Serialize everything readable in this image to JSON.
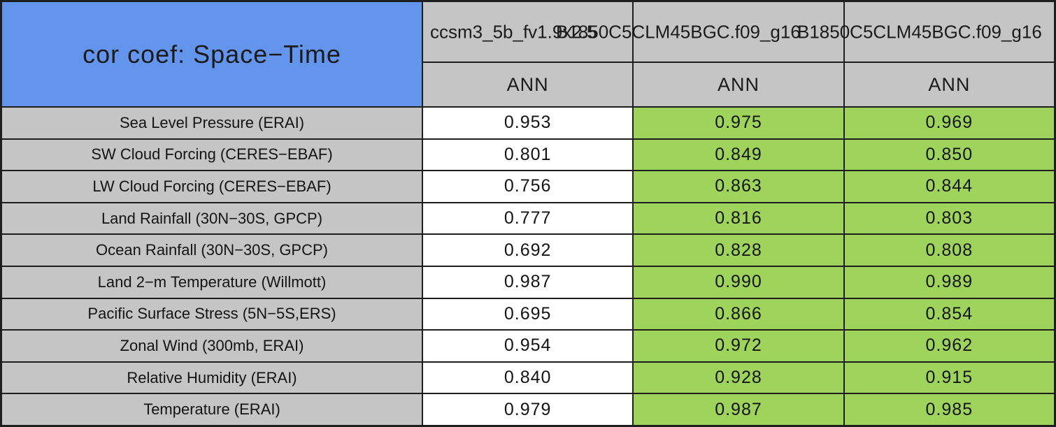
{
  "chart_data": {
    "type": "table",
    "title": "cor coef: Space−Time",
    "columns": [
      {
        "case_name": "ccsm3_5b_fv1.9x2.5",
        "season": "ANN"
      },
      {
        "case_name": "B1850C5CLM45BGC.f09_g16",
        "season": "ANN"
      },
      {
        "case_name": "B1850C5CLM45BGC.f09_g16",
        "season": "ANN"
      }
    ],
    "row_labels": [
      "Sea Level Pressure (ERAI)",
      "SW Cloud Forcing (CERES−EBAF)",
      "LW Cloud Forcing (CERES−EBAF)",
      "Land Rainfall (30N−30S, GPCP)",
      "Ocean Rainfall (30N−30S, GPCP)",
      "Land 2−m Temperature (Willmott)",
      "Pacific Surface Stress (5N−5S,ERS)",
      "Zonal Wind (300mb, ERAI)",
      "Relative Humidity (ERAI)",
      "Temperature (ERAI)"
    ],
    "values": [
      [
        0.953,
        0.975,
        0.969
      ],
      [
        0.801,
        0.849,
        0.85
      ],
      [
        0.756,
        0.863,
        0.844
      ],
      [
        0.777,
        0.816,
        0.803
      ],
      [
        0.692,
        0.828,
        0.808
      ],
      [
        0.987,
        0.99,
        0.989
      ],
      [
        0.695,
        0.866,
        0.854
      ],
      [
        0.954,
        0.972,
        0.962
      ],
      [
        0.84,
        0.928,
        0.915
      ],
      [
        0.979,
        0.987,
        0.985
      ]
    ],
    "value_decimals": 3,
    "layout_hints": {
      "grid": "on",
      "header_text_overflow": "case names overlap adjacent columns",
      "third_column_name_clipped_at_right_edge": true
    }
  },
  "colors": {
    "title_bg": "#6495ED",
    "header_bg": "#C5C5C5",
    "row_label_bg": "#C5C5C5",
    "column_value_bg": [
      "#FFFFFF",
      "#9ED45C",
      "#9ED45C"
    ],
    "border": "#1E1E1E"
  }
}
